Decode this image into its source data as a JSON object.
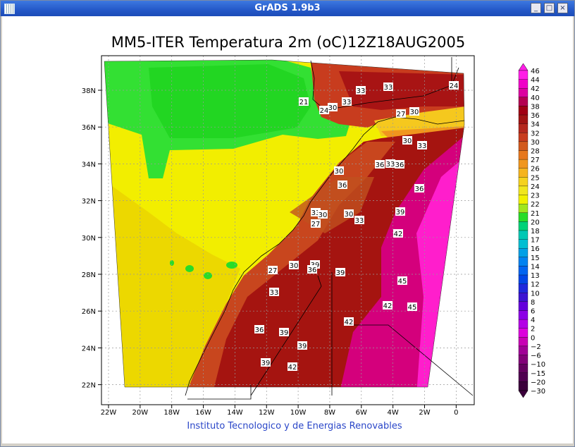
{
  "window": {
    "title": "GrADS 1.9b3"
  },
  "map": {
    "title": "MM5-ITER Temperatura 2m (oC)12Z18AUG2005",
    "xticks": [
      "22W",
      "20W",
      "18W",
      "16W",
      "14W",
      "12W",
      "10W",
      "8W",
      "6W",
      "4W",
      "2W",
      "0"
    ],
    "yticks": [
      "38N",
      "36N",
      "34N",
      "32N",
      "30N",
      "28N",
      "26N",
      "24N",
      "22N"
    ],
    "contour_labels": [
      "21",
      "24",
      "30",
      "33",
      "33",
      "33",
      "24",
      "27",
      "30",
      "30",
      "33",
      "30",
      "36",
      "33",
      "36",
      "36",
      "36",
      "33",
      "30",
      "27",
      "30",
      "33",
      "39",
      "42",
      "27",
      "30",
      "39",
      "36",
      "39",
      "45",
      "33",
      "42",
      "45",
      "42",
      "36",
      "39",
      "39",
      "39",
      "42"
    ],
    "credit": "Instituto Tecnologico y de Energias Renovables"
  },
  "colorbar": {
    "labels": [
      "46",
      "44",
      "42",
      "40",
      "38",
      "36",
      "34",
      "32",
      "30",
      "28",
      "27",
      "26",
      "25",
      "24",
      "23",
      "22",
      "21",
      "20",
      "18",
      "17",
      "16",
      "15",
      "14",
      "13",
      "12",
      "10",
      "8",
      "6",
      "4",
      "2",
      "0",
      "−2",
      "−6",
      "−10",
      "−15",
      "−20",
      "−30"
    ],
    "colors": [
      "#ff1ee6",
      "#f000c8",
      "#dc00a0",
      "#b40050",
      "#a00014",
      "#a01414",
      "#b4281e",
      "#c83c1e",
      "#d25a1e",
      "#e6781e",
      "#f0961e",
      "#f5b41e",
      "#f5d21e",
      "#f0e61e",
      "#f0f000",
      "#a0e61e",
      "#28dc28",
      "#00d278",
      "#00c8b4",
      "#00bed2",
      "#00a0e6",
      "#0082f0",
      "#0064f0",
      "#0046e6",
      "#1e28dc",
      "#3c14d2",
      "#6400dc",
      "#8c00e6",
      "#b400e6",
      "#dc00dc",
      "#c800b4",
      "#a00096",
      "#820078",
      "#64005f",
      "#500050",
      "#3c003c"
    ]
  }
}
